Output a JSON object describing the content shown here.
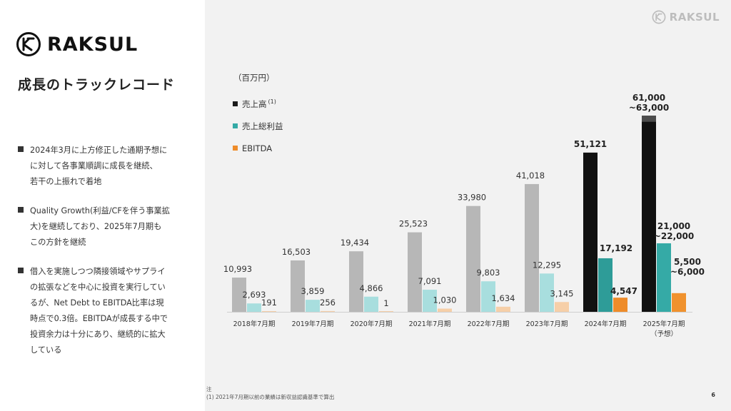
{
  "brand": {
    "name": "RAKSUL",
    "small_name": "RAKSUL"
  },
  "page": {
    "title": "成長のトラックレコード",
    "number": "6"
  },
  "bullets": [
    "2024年3月に上方修正した通期予想に\nに対して各事業順調に成長を継続、\n若干の上振れで着地",
    "Quality Growth(利益/CFを伴う事業拡\n大)を継続しており、2025年7月期も\nこの方針を継続",
    "借入を実施しつつ隣接領域やサプライ\nの拡張などを中心に投資を実行してい\nるが、Net Debt to EBITDA比率は現\n時点で0.3倍。EBITDAが成長する中で\n投資余力は十分にあり、継続的に拡大\nしている"
  ],
  "legend_sup": "(1)",
  "notes": {
    "label": "注",
    "line1": "(1) 2021年7月期以前の業績は新収益認識基準で算出"
  },
  "chart_data": {
    "type": "bar",
    "unit_label": "（百万円）",
    "categories": [
      "2018年7月期",
      "2019年7月期",
      "2020年7月期",
      "2021年7月期",
      "2022年7月期",
      "2023年7月期",
      "2024年7月期",
      "2025年7月期"
    ],
    "category_sublabels": [
      "",
      "",
      "",
      "",
      "",
      "",
      "",
      "（予想）"
    ],
    "series": [
      {
        "name": "売上高",
        "values": [
          10993,
          16503,
          19434,
          25523,
          33980,
          41018,
          51121,
          63000
        ],
        "labels": [
          "10,993",
          "16,503",
          "19,434",
          "25,523",
          "33,980",
          "41,018",
          "51,121",
          "61,000\n~63,000"
        ],
        "colors": [
          "#b7b7b7",
          "#b7b7b7",
          "#b7b7b7",
          "#b7b7b7",
          "#b7b7b7",
          "#b7b7b7",
          "#111111",
          "#111111"
        ]
      },
      {
        "name": "売上総利益",
        "values": [
          2693,
          3859,
          4866,
          7091,
          9803,
          12295,
          17192,
          22000
        ],
        "labels": [
          "2,693",
          "3,859",
          "4,866",
          "7,091",
          "9,803",
          "12,295",
          "17,192",
          "21,000\n~22,000"
        ],
        "colors": [
          "#a8dede",
          "#a8dede",
          "#a8dede",
          "#a8dede",
          "#a8dede",
          "#a8dede",
          "#2e9c98",
          "#35aaa6"
        ]
      },
      {
        "name": "EBITDA",
        "values": [
          191,
          256,
          1,
          1030,
          1634,
          3145,
          4547,
          6000
        ],
        "labels": [
          "191",
          "256",
          "1",
          "1,030",
          "1,634",
          "3,145",
          "4,547",
          "5,500\n~6,000"
        ],
        "colors": [
          "#f6cfa8",
          "#f6cfa8",
          "#f6cfa8",
          "#f6cfa8",
          "#f6cfa8",
          "#f6cfa8",
          "#ee8c2a",
          "#f0922e"
        ]
      }
    ],
    "legend_colors": [
      "#1a1a1a",
      "#35aaa6",
      "#ee8c2a"
    ],
    "ylim": [
      0,
      63000
    ],
    "range_bar": {
      "series": 0,
      "category": 7,
      "low": 61000,
      "high": 63000
    },
    "emphasized_categories": [
      6,
      7
    ],
    "legend_position": "top-left"
  }
}
